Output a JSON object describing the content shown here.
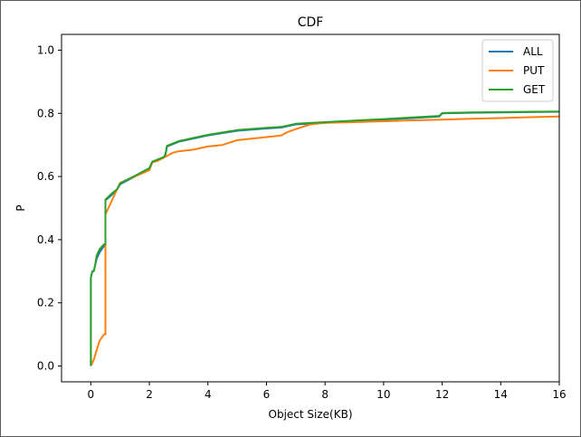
{
  "chart_data": {
    "type": "line",
    "title": "CDF",
    "xlabel": "Object Size(KB)",
    "ylabel": "P",
    "xlim": [
      -1,
      16
    ],
    "ylim": [
      -0.05,
      1.05
    ],
    "xticks": [
      0,
      2,
      4,
      6,
      8,
      10,
      12,
      14,
      16
    ],
    "yticks": [
      0.0,
      0.2,
      0.4,
      0.6,
      0.8,
      1.0
    ],
    "xtick_labels": [
      "0",
      "2",
      "4",
      "6",
      "8",
      "10",
      "12",
      "14",
      "16"
    ],
    "ytick_labels": [
      "0.0",
      "0.2",
      "0.4",
      "0.6",
      "0.8",
      "1.0"
    ],
    "grid": false,
    "legend_position": "top-right",
    "series": [
      {
        "name": "ALL",
        "color": "#1f77b4",
        "x": [
          0,
          0,
          0.05,
          0.1,
          0.15,
          0.2,
          0.3,
          0.45,
          0.5,
          0.5,
          0.7,
          0.9,
          1.0,
          1.2,
          1.5,
          1.8,
          2.0,
          2.1,
          2.5,
          2.55,
          2.6,
          3.0,
          3.5,
          4.0,
          5.0,
          6.0,
          6.5,
          7.0,
          8.0,
          9.0,
          10.0,
          11.0,
          11.9,
          12.0,
          13.0,
          14.0,
          15.0,
          16.0
        ],
        "y": [
          0.0,
          0.28,
          0.3,
          0.3,
          0.32,
          0.34,
          0.36,
          0.38,
          0.38,
          0.525,
          0.54,
          0.56,
          0.575,
          0.585,
          0.6,
          0.615,
          0.625,
          0.645,
          0.66,
          0.67,
          0.695,
          0.71,
          0.72,
          0.73,
          0.745,
          0.752,
          0.755,
          0.765,
          0.77,
          0.775,
          0.78,
          0.785,
          0.79,
          0.8,
          0.802,
          0.803,
          0.804,
          0.805
        ]
      },
      {
        "name": "PUT",
        "color": "#ff7f0e",
        "x": [
          0,
          0.05,
          0.1,
          0.2,
          0.3,
          0.45,
          0.5,
          0.5,
          0.55,
          0.6,
          0.7,
          0.8,
          0.9,
          1.0,
          1.5,
          2.0,
          2.1,
          2.3,
          2.5,
          2.6,
          2.8,
          3.0,
          3.5,
          4.0,
          4.5,
          5.0,
          6.0,
          6.5,
          6.7,
          7.0,
          7.5,
          8.0,
          9.0,
          10.0,
          11.0,
          12.0,
          13.0,
          14.0,
          15.0,
          16.0
        ],
        "y": [
          0.0,
          0.01,
          0.02,
          0.05,
          0.08,
          0.1,
          0.1,
          0.48,
          0.49,
          0.5,
          0.52,
          0.54,
          0.56,
          0.58,
          0.6,
          0.62,
          0.645,
          0.65,
          0.66,
          0.665,
          0.675,
          0.68,
          0.685,
          0.695,
          0.7,
          0.715,
          0.725,
          0.73,
          0.74,
          0.75,
          0.765,
          0.77,
          0.772,
          0.775,
          0.778,
          0.78,
          0.783,
          0.785,
          0.788,
          0.79
        ]
      },
      {
        "name": "GET",
        "color": "#2ca02c",
        "x": [
          0,
          0,
          0.05,
          0.1,
          0.15,
          0.2,
          0.3,
          0.45,
          0.5,
          0.5,
          0.7,
          0.9,
          1.0,
          1.2,
          1.5,
          1.8,
          2.0,
          2.1,
          2.5,
          2.55,
          2.6,
          3.0,
          3.5,
          4.0,
          5.0,
          6.0,
          6.5,
          7.0,
          8.0,
          9.0,
          10.0,
          11.0,
          11.9,
          12.0,
          13.0,
          14.0,
          15.0,
          16.0
        ],
        "y": [
          0.0,
          0.28,
          0.3,
          0.3,
          0.32,
          0.35,
          0.37,
          0.385,
          0.385,
          0.527,
          0.545,
          0.56,
          0.578,
          0.588,
          0.602,
          0.617,
          0.627,
          0.647,
          0.662,
          0.672,
          0.697,
          0.712,
          0.722,
          0.732,
          0.747,
          0.754,
          0.757,
          0.767,
          0.772,
          0.777,
          0.782,
          0.787,
          0.792,
          0.801,
          0.803,
          0.804,
          0.805,
          0.806
        ]
      }
    ]
  }
}
